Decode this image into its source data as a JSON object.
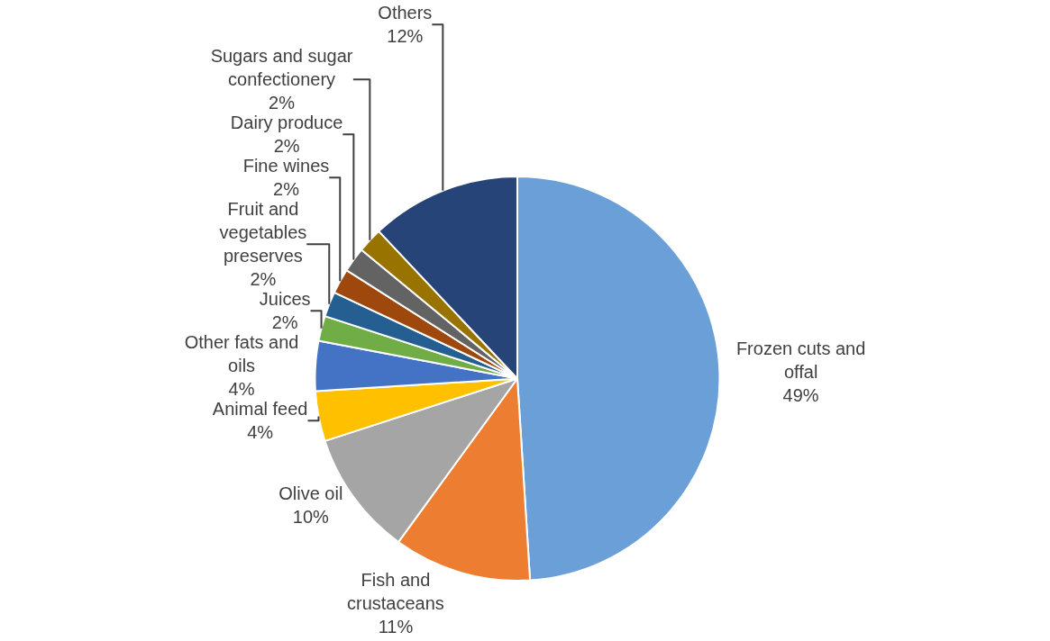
{
  "chart_data": {
    "type": "pie",
    "categories": [
      "Frozen cuts and offal",
      "Fish and crustaceans",
      "Olive oil",
      "Animal feed",
      "Other fats and oils",
      "Juices",
      "Fruit and vegetables preserves",
      "Fine wines",
      "Dairy produce",
      "Sugars and sugar confectionery",
      "Others"
    ],
    "values": [
      49,
      11,
      10,
      4,
      4,
      2,
      2,
      2,
      2,
      2,
      12
    ],
    "value_labels": [
      "49%",
      "11%",
      "10%",
      "4%",
      "4%",
      "2%",
      "2%",
      "2%",
      "2%",
      "2%",
      "12%"
    ],
    "colors": [
      "#6a9fd8",
      "#ed7d31",
      "#a5a5a5",
      "#ffc000",
      "#4472c4",
      "#70ad47",
      "#255e91",
      "#9e480e",
      "#636363",
      "#997300",
      "#264478"
    ],
    "legend": false
  }
}
